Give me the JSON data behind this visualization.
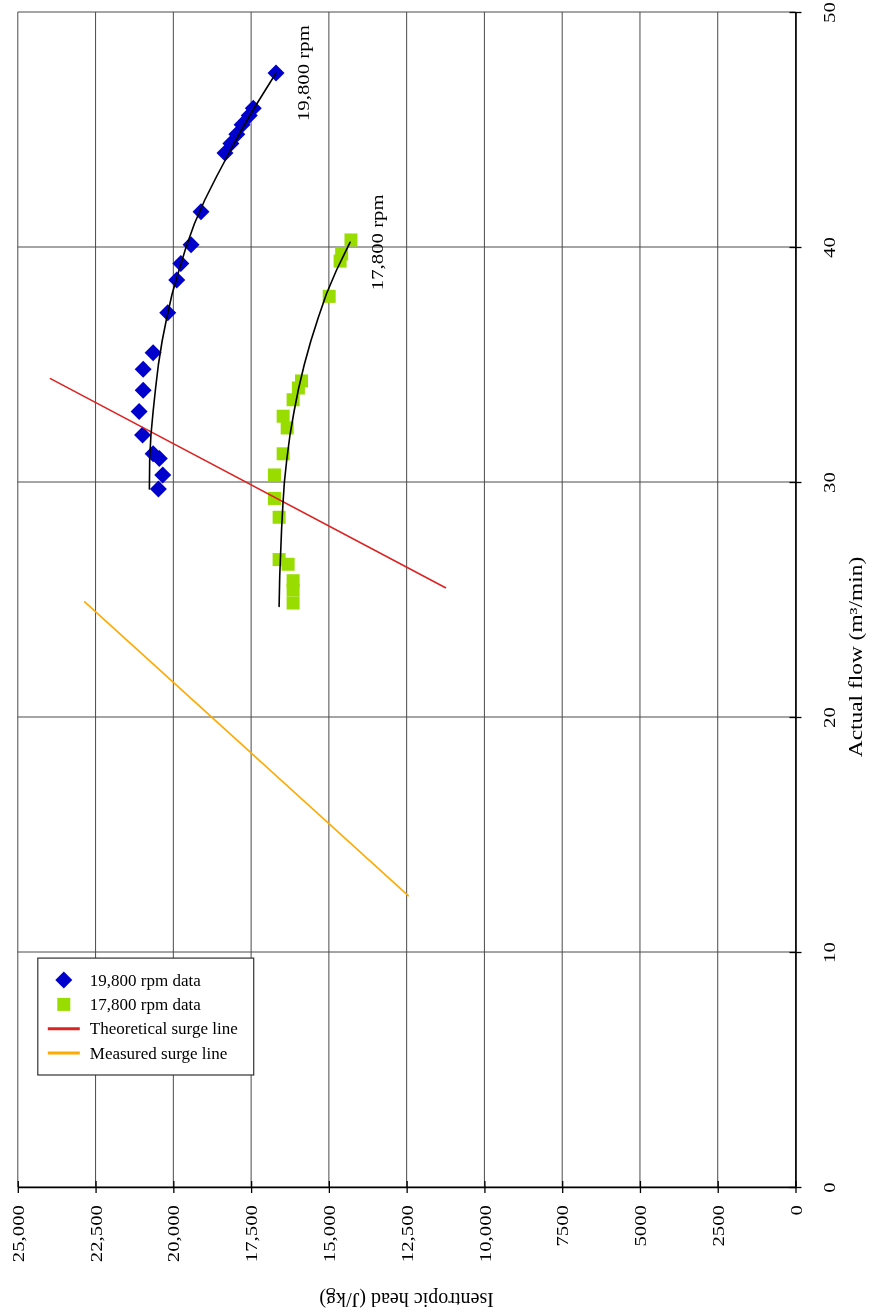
{
  "chart_data": {
    "type": "scatter",
    "xlabel": "Isentropic head (J/kg)",
    "ylabel": "Actual flow (m³/min)",
    "xlim": [
      25000,
      0
    ],
    "xticks": [
      {
        "value": 25000,
        "label": "25,000"
      },
      {
        "value": 22500,
        "label": "22,500"
      },
      {
        "value": 20000,
        "label": "20,000"
      },
      {
        "value": 17500,
        "label": "17,500"
      },
      {
        "value": 15000,
        "label": "15,000"
      },
      {
        "value": 12500,
        "label": "12,500"
      },
      {
        "value": 10000,
        "label": "10,000"
      },
      7500,
      5000,
      2500,
      0
    ],
    "ylim": [
      0,
      50
    ],
    "yticks": [
      0,
      10,
      20,
      30,
      40,
      50
    ],
    "grid": true,
    "legend": "bottom left",
    "series": [
      {
        "name": "19,800 rpm data",
        "marker": "diamond",
        "color": "#0000cc",
        "x": [
          20480,
          20340,
          20450,
          20650,
          20990,
          21100,
          20970,
          20970,
          20650,
          20180,
          19890,
          19760,
          19430,
          19110,
          18340,
          18150,
          17960,
          17790,
          17560,
          17430,
          16700
        ],
        "values": [
          29.7,
          30.3,
          31.0,
          31.2,
          32.0,
          33.0,
          33.9,
          34.8,
          35.5,
          37.2,
          38.6,
          39.3,
          40.1,
          41.5,
          44.0,
          44.4,
          44.8,
          45.2,
          45.6,
          45.9,
          47.4
        ]
      },
      {
        "name": "17,800 rpm data",
        "marker": "square",
        "color": "#99dd00",
        "x": [
          16150,
          16150,
          16150,
          16310,
          16600,
          16600,
          16750,
          16750,
          16470,
          16340,
          16470,
          16150,
          15980,
          15880,
          14990,
          14640,
          14590,
          14290
        ],
        "values": [
          24.85,
          25.4,
          25.8,
          26.5,
          26.7,
          28.5,
          29.3,
          30.3,
          31.2,
          32.3,
          32.8,
          33.5,
          34.0,
          34.3,
          37.9,
          39.4,
          39.7,
          40.3
        ]
      },
      {
        "name": "Theoretical surge line",
        "type": "line",
        "marker": "none",
        "color": "#dd2222",
        "x": [
          11250,
          23950
        ],
        "values": [
          25.5,
          34.4
        ]
      },
      {
        "name": "Measured surge line",
        "type": "line",
        "marker": "none",
        "color": "#ffaa00",
        "x": [
          12450,
          22850
        ],
        "values": [
          12.4,
          24.9
        ]
      },
      {
        "type": "line",
        "marker": "none",
        "color": "#000000",
        "x": [
          20770,
          20760,
          20720,
          20650,
          20570,
          20480,
          20360,
          20210,
          20040,
          19820,
          19590,
          19320,
          18990,
          18610,
          18210,
          17800,
          17360,
          16890,
          16700
        ],
        "values": [
          29.7,
          31,
          32,
          33,
          34,
          35,
          36,
          37,
          38,
          39,
          40,
          41,
          42,
          43,
          44,
          45,
          46,
          47,
          47.4
        ]
      },
      {
        "type": "line",
        "marker": "none",
        "color": "#000000",
        "x": [
          16600,
          16580,
          16550,
          16520,
          16480,
          16430,
          16350,
          16250,
          16120,
          15970,
          15790,
          15580,
          15340,
          15080,
          14760,
          14320
        ],
        "values": [
          24.7,
          26,
          27,
          28,
          29,
          30,
          31,
          32,
          33,
          34,
          35,
          36,
          37,
          38,
          39,
          40.2
        ]
      }
    ],
    "annotations": [
      {
        "text": "19,800 rpm",
        "x": 16700,
        "y": 47.4
      },
      {
        "text": "17,800 rpm",
        "x": 14320,
        "y": 40.2
      }
    ]
  }
}
